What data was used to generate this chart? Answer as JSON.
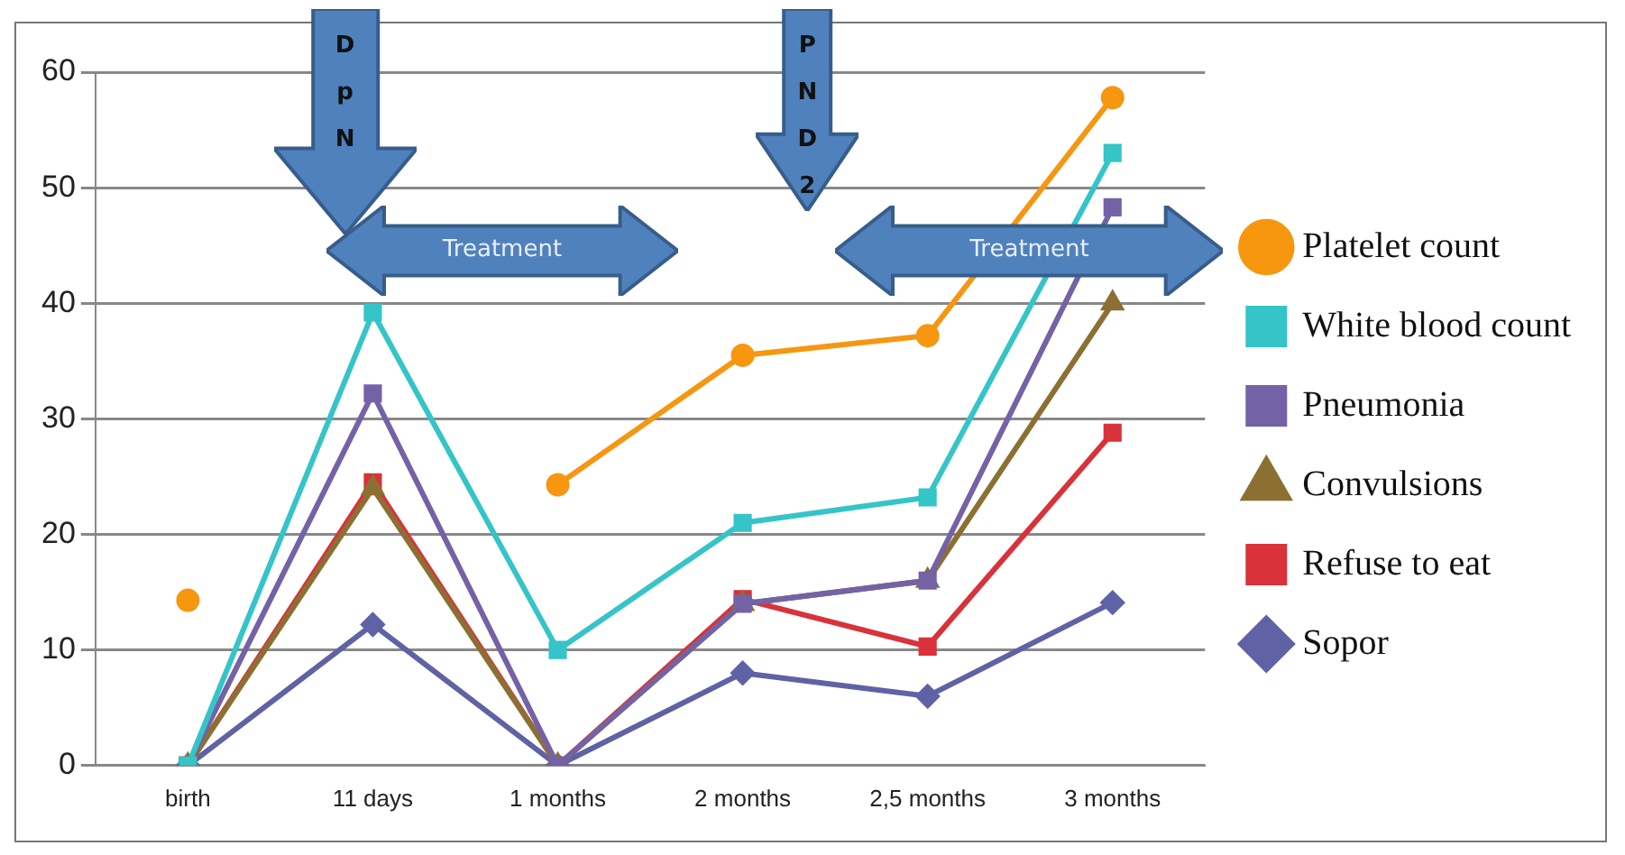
{
  "chart_data": {
    "type": "line",
    "categories": [
      "birth",
      "11 days",
      "1 months",
      "2 months",
      "2,5 months",
      "3 months"
    ],
    "series": [
      {
        "name": "Platelet count",
        "color": "#f7960f",
        "marker": "circle",
        "values": [
          14.3,
          null,
          24.3,
          35.5,
          37.2,
          57.8
        ]
      },
      {
        "name": "White blood count",
        "color": "#35c4c8",
        "marker": "square",
        "values": [
          0,
          39.2,
          10,
          21,
          23.2,
          53
        ]
      },
      {
        "name": "Pneumonia",
        "color": "#7462a6",
        "marker": "square",
        "values": [
          0,
          32.2,
          0,
          14,
          16,
          48.3
        ]
      },
      {
        "name": "Convulsions",
        "color": "#8c7033",
        "marker": "triangle",
        "values": [
          0,
          24,
          0,
          14,
          16,
          40
        ]
      },
      {
        "name": "Refuse to eat",
        "color": "#d9323a",
        "marker": "square",
        "values": [
          0,
          24.5,
          0,
          14.4,
          10.3,
          28.8
        ]
      },
      {
        "name": "Sopor",
        "color": "#5f62a4",
        "marker": "diamond",
        "values": [
          0,
          12.2,
          0,
          8,
          6,
          14.1
        ]
      }
    ],
    "ylim": [
      0,
      60
    ],
    "yticks": [
      0,
      10,
      20,
      30,
      40,
      50,
      60
    ],
    "grid": "y",
    "legend": "right",
    "annotations": [
      "DpN",
      "Treatment",
      "PND2",
      "Treatment"
    ]
  }
}
